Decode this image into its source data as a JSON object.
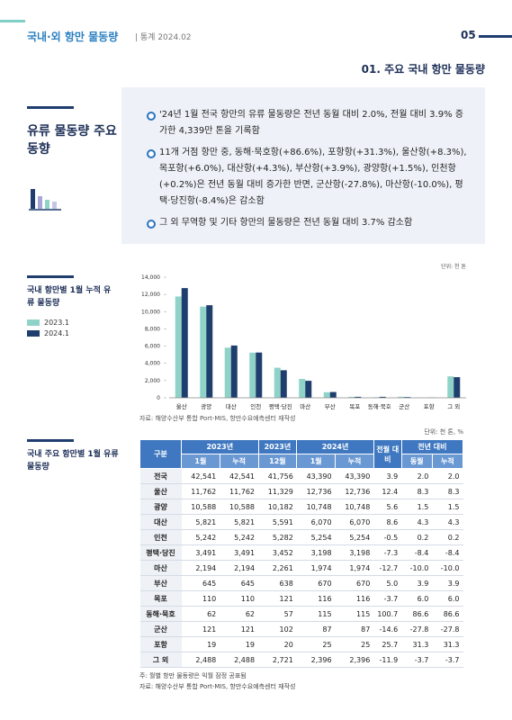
{
  "header": {
    "title": "국내·외 항만 물동량",
    "subtitle": "| 통계 2024.02",
    "page": "05"
  },
  "section_title": "01. 주요 국내 항만 물동량",
  "summary": {
    "title": "유류 물동량 주요동향",
    "bullets": [
      "'24년 1월 전국 항만의 유류 물동량은 전년 동월 대비 2.0%, 전월 대비 3.9% 증가한 4,339만 톤을 기록함",
      "11개 거점 항만 중, 동해·묵호항(+86.6%), 포항항(+31.3%), 울산항(+8.3%), 목포항(+6.0%), 대산항(+4.3%), 부산항(+3.9%), 광양항(+1.5%), 인천항(+0.2%)은 전년 동월 대비 증가한 반면, 군산항(-27.8%), 마산항(-10.0%), 평택·당진항(-8.4%)은 감소함",
      "그 외 무역항 및 기타 항만의 물동량은 전년 동월 대비 3.7% 감소함"
    ]
  },
  "chart_data": {
    "type": "bar",
    "title": "국내 항만별 1월 누적 유류 물동량",
    "unit": "단위: 천 톤",
    "categories": [
      "울산",
      "광양",
      "대산",
      "인천",
      "평택·당진",
      "마산",
      "부산",
      "목포",
      "동해·묵호",
      "군산",
      "포항",
      "그 외"
    ],
    "series": [
      {
        "name": "2023.1",
        "color": "#8fd3c8",
        "values": [
          11762,
          10588,
          5821,
          5242,
          3491,
          2194,
          645,
          110,
          62,
          121,
          19,
          2488
        ]
      },
      {
        "name": "2024.1",
        "color": "#1f3e6e",
        "values": [
          12736,
          10748,
          6070,
          5254,
          3198,
          1974,
          670,
          116,
          115,
          87,
          25,
          2396
        ]
      }
    ],
    "ylim": [
      0,
      14000
    ],
    "yticks": [
      0,
      {
        "value": 2000,
        "label": "2,000"
      },
      {
        "value": 4000,
        "label": "4,000"
      },
      {
        "value": 6000,
        "label": "6,000"
      },
      {
        "value": 8000,
        "label": "8,000"
      },
      {
        "value": 10000,
        "label": "10,000"
      },
      {
        "value": 12000,
        "label": "12,000"
      },
      {
        "value": 14000,
        "label": "14,000"
      }
    ],
    "grid": false,
    "source": "자료: 해양수산부 통합 Port-MIS, 항만수요예측센터 재작성"
  },
  "table": {
    "title": "국내 주요 항만별 1월 유류 물동량",
    "unit": "단위: 천 톤, %",
    "header": [
      "구분",
      "2023년",
      "2023년",
      "2024년",
      "전월 대비",
      "전년 대비"
    ],
    "subheader": [
      "1월",
      "누적",
      "12월",
      "1월",
      "누적",
      "동월",
      "누적"
    ],
    "rows": [
      [
        "전국",
        "42,541",
        "42,541",
        "41,756",
        "43,390",
        "43,390",
        "3.9",
        "2.0",
        "2.0"
      ],
      [
        "울산",
        "11,762",
        "11,762",
        "11,329",
        "12,736",
        "12,736",
        "12.4",
        "8.3",
        "8.3"
      ],
      [
        "광양",
        "10,588",
        "10,588",
        "10,182",
        "10,748",
        "10,748",
        "5.6",
        "1.5",
        "1.5"
      ],
      [
        "대산",
        "5,821",
        "5,821",
        "5,591",
        "6,070",
        "6,070",
        "8.6",
        "4.3",
        "4.3"
      ],
      [
        "인천",
        "5,242",
        "5,242",
        "5,282",
        "5,254",
        "5,254",
        "-0.5",
        "0.2",
        "0.2"
      ],
      [
        "평택·당진",
        "3,491",
        "3,491",
        "3,452",
        "3,198",
        "3,198",
        "-7.3",
        "-8.4",
        "-8.4"
      ],
      [
        "마산",
        "2,194",
        "2,194",
        "2,261",
        "1,974",
        "1,974",
        "-12.7",
        "-10.0",
        "-10.0"
      ],
      [
        "부산",
        "645",
        "645",
        "638",
        "670",
        "670",
        "5.0",
        "3.9",
        "3.9"
      ],
      [
        "목포",
        "110",
        "110",
        "121",
        "116",
        "116",
        "-3.7",
        "6.0",
        "6.0"
      ],
      [
        "동해·묵호",
        "62",
        "62",
        "57",
        "115",
        "115",
        "100.7",
        "86.6",
        "86.6"
      ],
      [
        "군산",
        "121",
        "121",
        "102",
        "87",
        "87",
        "-14.6",
        "-27.8",
        "-27.8"
      ],
      [
        "포항",
        "19",
        "19",
        "20",
        "25",
        "25",
        "25.7",
        "31.3",
        "31.3"
      ],
      [
        "그 외",
        "2,488",
        "2,488",
        "2,721",
        "2,396",
        "2,396",
        "-11.9",
        "-3.7",
        "-3.7"
      ]
    ],
    "notes": [
      "주: 월별 항만 물동량은 익월 잠정 공표됨",
      "자료: 해양수산부 통합 Port-MIS, 항만수요예측센터 재작성"
    ]
  }
}
